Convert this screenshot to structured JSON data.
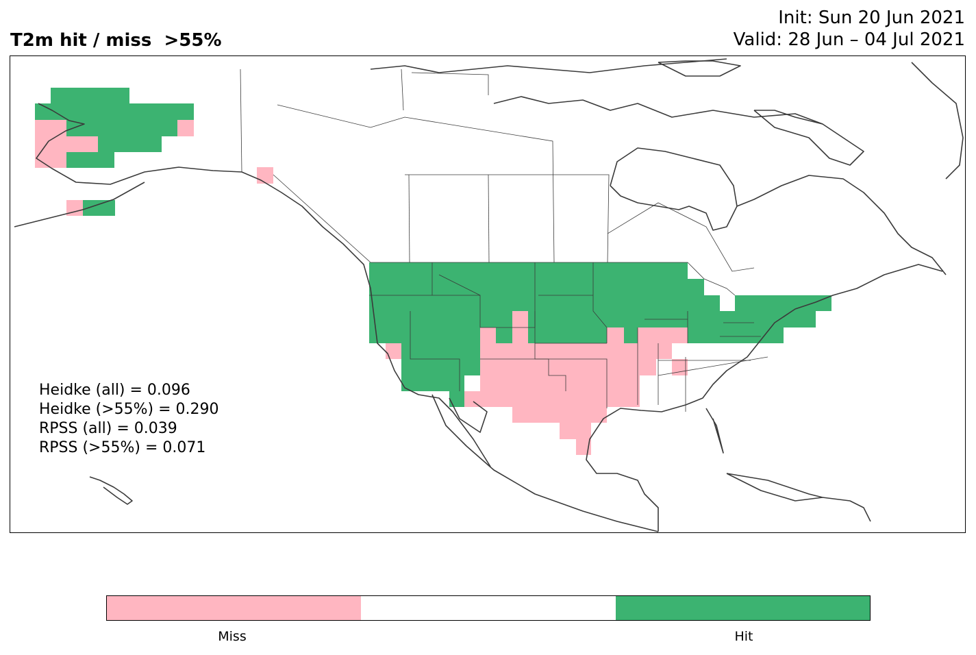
{
  "title": "T2m hit / miss  >55%",
  "init_line": "Init: Sun 20 Jun 2021",
  "valid_line": "Valid: 28 Jun – 04 Jul 2021",
  "stats": [
    "Heidke (all) = 0.096",
    "Heidke (>55%) = 0.290",
    "RPSS (all) = 0.039",
    "RPSS (>55%) = 0.071"
  ],
  "colors": {
    "miss": "#ffb6c1",
    "neutral": "#ffffff",
    "hit": "#3cb371",
    "coast": "#3a3a3a"
  },
  "colorbar": {
    "labels": [
      "Miss",
      "Hit"
    ]
  },
  "chart_data": {
    "type": "heatmap",
    "categories": [
      "Miss",
      "No forecast",
      "Hit"
    ],
    "regions": {
      "Alaska": {
        "hit": "most of western and interior Alaska",
        "miss": "southwest coast and Alaska Peninsula"
      },
      "CONUS_west_north": "Hit",
      "CONUS_south_central": "Miss (Texas, Oklahoma, Kansas, Arkansas, Missouri, New Mexico)",
      "CONUS_southeast": "No forecast",
      "CONUS_northeast": "Hit"
    }
  }
}
